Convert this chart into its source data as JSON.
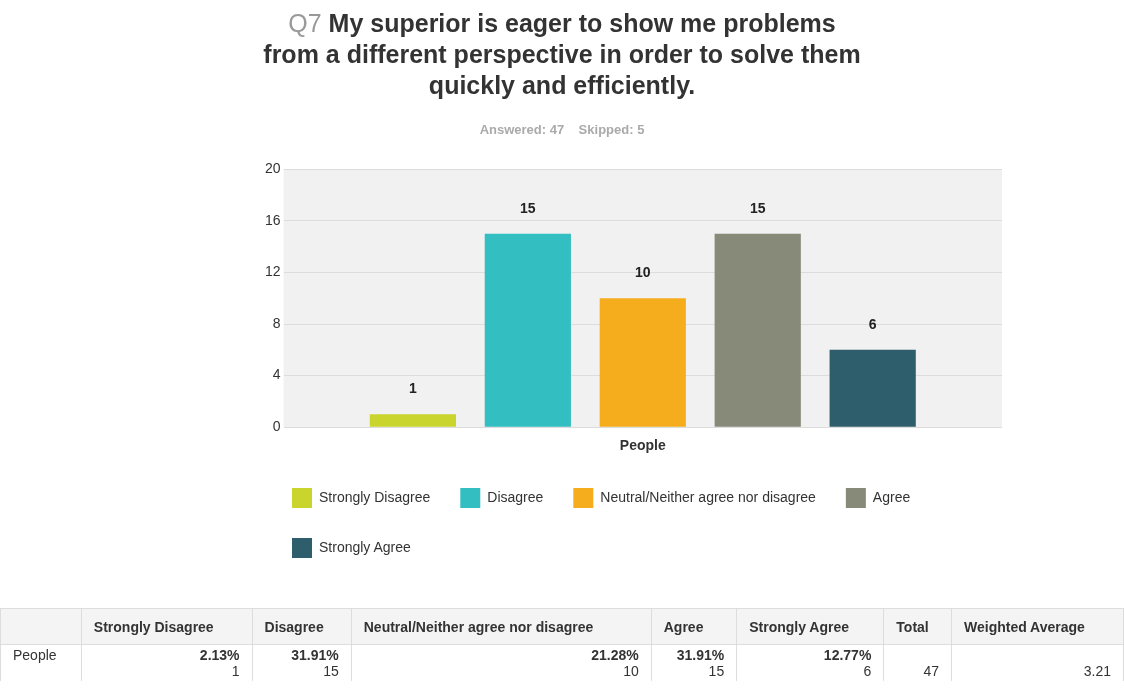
{
  "chart_data": {
    "type": "bar",
    "title": "Q7 My superior is eager to show me problems from a different perspective in order to solve them quickly and efficiently.",
    "subtitle": "Answered: 47    Skipped: 5",
    "categories": [
      "People"
    ],
    "series": [
      {
        "name": "Strongly Disagree",
        "color": "#c9d52c",
        "values": [
          1
        ]
      },
      {
        "name": "Disagree",
        "color": "#33bec1",
        "values": [
          15
        ]
      },
      {
        "name": "Neutral/Neither agree nor disagree",
        "color": "#f5ad1e",
        "values": [
          10
        ]
      },
      {
        "name": "Agree",
        "color": "#878a78",
        "values": [
          15
        ]
      },
      {
        "name": "Strongly Agree",
        "color": "#2e5e6c",
        "values": [
          6
        ]
      }
    ],
    "ylim": [
      0,
      20
    ],
    "yticks": [
      0,
      4,
      8,
      12,
      16,
      20
    ],
    "grid": "y",
    "legend": "bottom",
    "data_labels": true,
    "annotations": [
      "2.13%",
      "1",
      "31.91%",
      "15",
      "21.28%",
      "10",
      "31.91%",
      "15",
      "12.77%",
      "6",
      "Total",
      "47",
      "Weighted Average",
      "3.21"
    ]
  }
}
